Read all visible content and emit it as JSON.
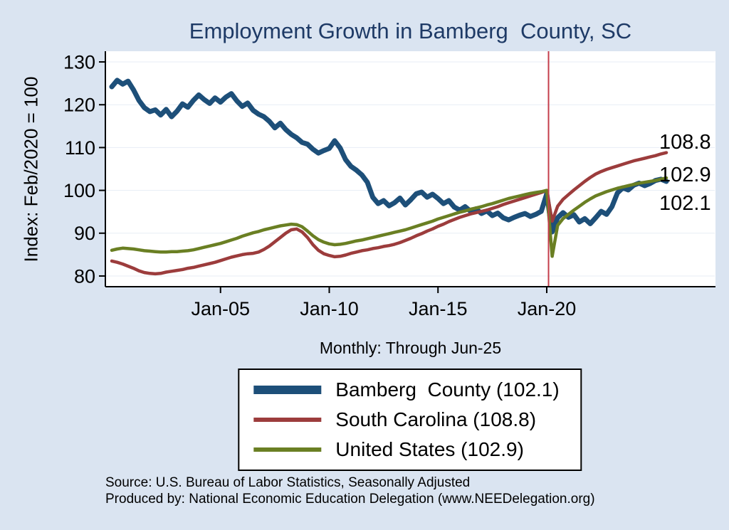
{
  "colors": {
    "background": "#dae4f1",
    "plot_background": "#ffffff",
    "title": "#1e3a66",
    "axis": "#000000",
    "gridline": "#e7edf6"
  },
  "end_labels": [
    "108.8",
    "102.9",
    "102.1"
  ],
  "legend": [
    {
      "label": "Bamberg  County (102.1)",
      "color": "#1d4f79"
    },
    {
      "label": "South Carolina (108.8)",
      "color": "#9c3c3c"
    },
    {
      "label": "United States (102.9)",
      "color": "#6a7f23"
    }
  ],
  "source": {
    "line1": "Source: U.S. Bureau of Labor Statistics, Seasonally Adjusted",
    "line2": "Produced by: National Economic Education Delegation (www.NEEDelegation.org)"
  },
  "chart_data": {
    "type": "line",
    "title": "Employment Growth in Bamberg  County, SC",
    "xlabel": "Monthly: Through Jun-25",
    "ylabel": "Index: Feb/2020 = 100",
    "xlim": [
      2000,
      2025.5
    ],
    "ylim": [
      77.5,
      132.5
    ],
    "x_start": 2000,
    "x_step": 0.25,
    "x_unit": "decimal-year, monthly data shown at quarterly resolution",
    "y_ticks": [
      80,
      90,
      100,
      110,
      120,
      130
    ],
    "x_ticks": [
      {
        "value": 2005,
        "label": "Jan-05"
      },
      {
        "value": 2010,
        "label": "Jan-10"
      },
      {
        "value": 2015,
        "label": "Jan-15"
      },
      {
        "value": 2020,
        "label": "Jan-20"
      }
    ],
    "reference_line": {
      "x": 2020.083,
      "color": "#c43d4b"
    },
    "grid": "horizontal",
    "legend_position": "below",
    "series": [
      {
        "name": "Bamberg  County",
        "final_value": 102.1,
        "color": "#1d4f79",
        "line_width": 7,
        "values": [
          124.2,
          125.7,
          124.8,
          125.5,
          123.5,
          121.0,
          119.3,
          118.4,
          118.8,
          117.6,
          118.9,
          117.2,
          118.5,
          120.2,
          119.4,
          121.0,
          122.3,
          121.2,
          120.3,
          121.6,
          120.6,
          121.8,
          122.6,
          120.9,
          119.6,
          120.4,
          118.7,
          117.8,
          117.2,
          116.1,
          114.6,
          115.7,
          114.2,
          113.1,
          112.3,
          111.2,
          110.8,
          109.6,
          108.7,
          109.3,
          109.8,
          111.6,
          109.9,
          107.2,
          105.6,
          104.7,
          103.6,
          101.9,
          98.4,
          96.9,
          97.6,
          96.4,
          97.1,
          98.2,
          96.6,
          97.8,
          99.2,
          99.6,
          98.4,
          99.1,
          98.1,
          96.9,
          97.6,
          96.1,
          95.4,
          96.2,
          95.1,
          95.7,
          94.6,
          95.2,
          94.1,
          94.7,
          93.6,
          93.1,
          93.7,
          94.2,
          94.6,
          93.9,
          94.4,
          95.1,
          99.2,
          90.3,
          93.6,
          94.8,
          93.7,
          94.3,
          92.6,
          93.4,
          92.2,
          93.6,
          95.1,
          94.4,
          96.2,
          99.4,
          100.6,
          100.1,
          101.2,
          101.7,
          101.1,
          101.6,
          102.3,
          102.6,
          102.1
        ]
      },
      {
        "name": "South Carolina",
        "final_value": 108.8,
        "color": "#9c3c3c",
        "line_width": 4.5,
        "values": [
          83.5,
          83.2,
          82.8,
          82.3,
          81.8,
          81.2,
          80.8,
          80.6,
          80.5,
          80.6,
          80.9,
          81.1,
          81.3,
          81.5,
          81.8,
          82.0,
          82.3,
          82.6,
          82.9,
          83.2,
          83.6,
          84.0,
          84.4,
          84.7,
          85.0,
          85.2,
          85.3,
          85.6,
          86.2,
          87.0,
          88.0,
          89.0,
          90.0,
          90.8,
          91.0,
          90.3,
          89.0,
          87.3,
          86.0,
          85.2,
          84.8,
          84.5,
          84.6,
          84.9,
          85.3,
          85.6,
          85.9,
          86.1,
          86.4,
          86.6,
          86.9,
          87.1,
          87.4,
          87.8,
          88.3,
          88.8,
          89.4,
          89.9,
          90.5,
          91.0,
          91.6,
          92.1,
          92.7,
          93.2,
          93.7,
          94.1,
          94.5,
          94.8,
          95.1,
          95.4,
          95.8,
          96.2,
          96.7,
          97.1,
          97.5,
          97.9,
          98.3,
          98.7,
          99.1,
          99.5,
          100.0,
          92.8,
          96.3,
          97.9,
          99.0,
          100.1,
          101.1,
          102.1,
          103.0,
          103.8,
          104.4,
          104.9,
          105.3,
          105.7,
          106.1,
          106.5,
          106.9,
          107.2,
          107.5,
          107.8,
          108.1,
          108.5,
          108.8
        ]
      },
      {
        "name": "United States",
        "final_value": 102.9,
        "color": "#6a7f23",
        "line_width": 4.5,
        "values": [
          86.0,
          86.3,
          86.5,
          86.4,
          86.3,
          86.1,
          85.9,
          85.8,
          85.7,
          85.6,
          85.6,
          85.7,
          85.7,
          85.8,
          85.9,
          86.1,
          86.4,
          86.7,
          87.0,
          87.3,
          87.6,
          88.0,
          88.4,
          88.8,
          89.3,
          89.7,
          90.1,
          90.4,
          90.8,
          91.1,
          91.4,
          91.7,
          91.9,
          92.1,
          92.0,
          91.5,
          90.5,
          89.4,
          88.5,
          87.9,
          87.5,
          87.3,
          87.4,
          87.6,
          87.9,
          88.2,
          88.4,
          88.7,
          89.0,
          89.3,
          89.6,
          89.9,
          90.2,
          90.5,
          90.8,
          91.2,
          91.6,
          92.0,
          92.4,
          92.8,
          93.3,
          93.7,
          94.1,
          94.5,
          94.9,
          95.2,
          95.6,
          95.9,
          96.2,
          96.6,
          96.9,
          97.3,
          97.7,
          98.1,
          98.4,
          98.7,
          99.0,
          99.3,
          99.5,
          99.7,
          100.0,
          84.6,
          91.8,
          93.4,
          94.4,
          95.4,
          96.3,
          97.2,
          98.0,
          98.7,
          99.2,
          99.7,
          100.1,
          100.5,
          100.8,
          101.1,
          101.4,
          101.7,
          101.9,
          102.1,
          102.3,
          102.6,
          102.9
        ]
      }
    ]
  }
}
